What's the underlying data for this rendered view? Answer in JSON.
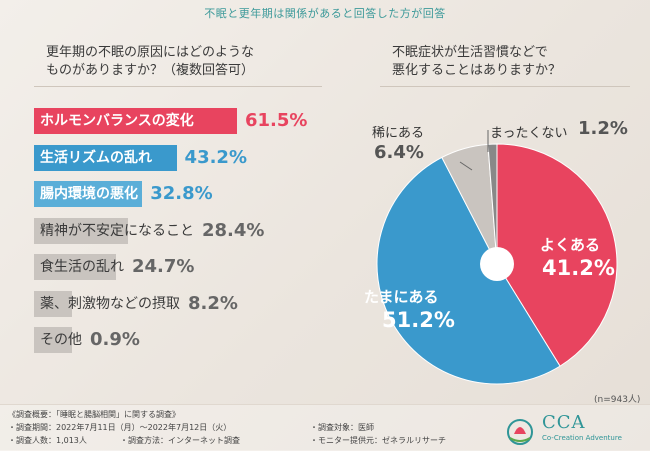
{
  "header": {
    "title": "不眠と更年期は関係があると回答した方が回答"
  },
  "question_left": {
    "line1": "更年期の不眠の原因にはどのような",
    "line2": "ものがありますか？（複数回答可）"
  },
  "question_right": {
    "line1": "不眠症状が生活習慣などで",
    "line2": "悪化することはありますか？"
  },
  "chart_data": [
    {
      "type": "bar",
      "orientation": "horizontal",
      "title": "更年期の不眠の原因にはどのようなものがありますか？（複数回答可）",
      "unit": "%",
      "categories": [
        "ホルモンバランスの変化",
        "生活リズムの乱れ",
        "腸内環境の悪化",
        "精神が不安定になること",
        "食生活の乱れ",
        "薬、刺激物などの摂取",
        "その他"
      ],
      "values": [
        61.5,
        43.2,
        32.8,
        28.4,
        24.7,
        8.2,
        0.9
      ],
      "value_labels": [
        "61.5%",
        "43.2%",
        "32.8%",
        "28.4%",
        "24.7%",
        "8.2%",
        "0.9%"
      ],
      "colors": [
        "#e8445f",
        "#3a99cc",
        "#5aaed8",
        "#c9c4bf",
        "#c9c4bf",
        "#c9c4bf",
        "#c9c4bf"
      ],
      "value_colors": [
        "#e8445f",
        "#3a99cc",
        "#3a99cc",
        "#666666",
        "#666666",
        "#666666",
        "#666666"
      ]
    },
    {
      "type": "pie",
      "title": "不眠症状が生活習慣などで悪化することはありますか？",
      "categories": [
        "よくある",
        "たまにある",
        "稀にある",
        "まったくない"
      ],
      "values": [
        41.2,
        51.2,
        6.4,
        1.2
      ],
      "value_labels": [
        "41.2%",
        "51.2%",
        "6.4%",
        "1.2%"
      ],
      "colors": [
        "#e8445f",
        "#3a99cc",
        "#c9c4bf",
        "#888888"
      ],
      "n_label": "(n=943人)"
    }
  ],
  "footer": {
    "summary": "《調査概要：「睡眠と腸脳相関」に関する調査》",
    "period": "・調査期間：2022年7月11日（月）～2022年7月12日（火）",
    "count": "・調査人数：1,013人",
    "method": "・調査方法：インターネット調査",
    "target": "・調査対象：医師",
    "provider": "・モニター提供元：ゼネラルリサーチ"
  },
  "logo": {
    "name": "CCA",
    "sub": "Co-Creation Adventure"
  }
}
